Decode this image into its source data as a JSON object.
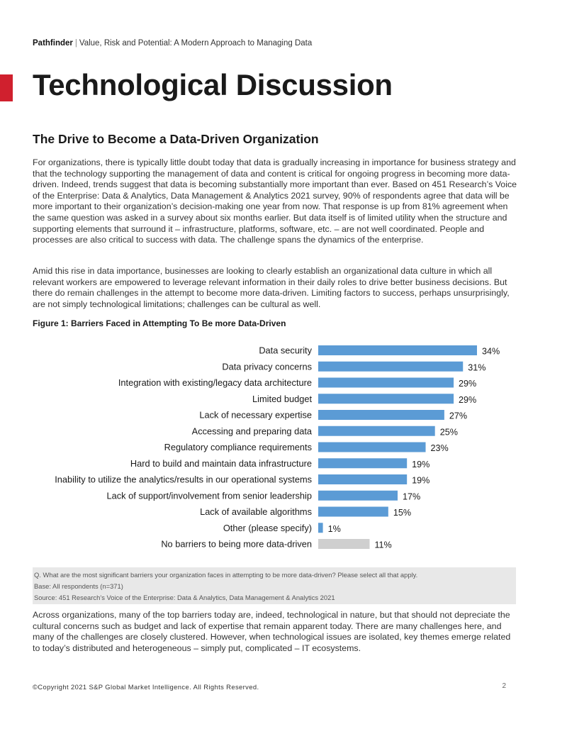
{
  "header": {
    "brand": "Pathfinder",
    "separator": "|",
    "subtitle": "Value, Risk and Potential: A Modern Approach to Managing Data"
  },
  "page_title": "Technological Discussion",
  "section_heading": "The Drive to Become a Data-Driven Organization",
  "paragraphs": {
    "p1": "For organizations, there is typically little doubt today that data is gradually increasing in importance for business strategy and that the technology supporting the management of data and content is critical for ongoing progress in becoming more data-driven. Indeed, trends suggest that data is becoming substantially more important than ever. Based on 451 Research’s Voice of the Enterprise: Data & Analytics, Data Management & Analytics 2021 survey, 90% of respondents agree that data will be more important to their organization’s decision-making one year from now. That response is up from 81% agreement when the same question was asked in a survey about six months earlier. But data itself is of limited utility when the structure and supporting elements that surround it – infrastructure, platforms, software, etc. – are not well coordinated. People and processes are also critical to success with data. The challenge spans the dynamics of the enterprise.",
    "p2": "Amid this rise in data importance, businesses are looking to clearly establish an organizational data culture in which all relevant workers are empowered to leverage relevant information in their daily roles to drive better business decisions. But there do remain challenges in the attempt to become more data-driven. Limiting factors to success, perhaps unsurprisingly, are not simply technological limitations; challenges can be cultural as well.",
    "p3": "Across organizations, many of the top barriers today are, indeed, technological in nature, but that should not depreciate the cultural concerns such as budget and lack of expertise that remain apparent today. There are many challenges here, and many of the challenges are closely clustered. However, when technological issues are isolated, key themes emerge related to today’s distributed and heterogeneous – simply put, complicated – IT ecosystems."
  },
  "figure_caption": "Figure 1: Barriers Faced in Attempting To Be more Data-Driven",
  "chart_data": {
    "type": "bar",
    "orientation": "horizontal",
    "title": "Figure 1: Barriers Faced in Attempting To Be more Data-Driven",
    "xlabel": "",
    "ylabel": "",
    "grid": false,
    "xlim": [
      0,
      34
    ],
    "categories": [
      "Data security",
      "Data privacy concerns",
      "Integration with existing/legacy data architecture",
      "Limited budget",
      "Lack of necessary expertise",
      "Accessing and preparing data",
      "Regulatory compliance requirements",
      "Hard to build and maintain data infrastructure",
      "Inability to utilize the analytics/results in our operational systems",
      "Lack of support/involvement from senior leadership",
      "Lack of available algorithms",
      "Other (please specify)",
      "No barriers to being more data-driven"
    ],
    "values": [
      34,
      31,
      29,
      29,
      27,
      25,
      23,
      19,
      19,
      17,
      15,
      1,
      11
    ],
    "value_labels": [
      "34%",
      "31%",
      "29%",
      "29%",
      "27%",
      "25%",
      "23%",
      "19%",
      "19%",
      "17%",
      "15%",
      "1%",
      "11%"
    ],
    "colors": {
      "bar": "#5b9bd5",
      "highlight_last": "#cfcfcf"
    }
  },
  "notes": {
    "question": "Q. What are the most significant barriers your organization faces in attempting to be more data-driven? Please select all that apply.",
    "base": "Base: All respondents (n=371)",
    "source": "Source: 451 Research’s Voice of the Enterprise: Data & Analytics, Data Management & Analytics 2021"
  },
  "footer": {
    "copyright": "©Copyright 2021 S&P Global Market Intelligence. All Rights Reserved.",
    "page_number": "2"
  },
  "colors": {
    "accent_red": "#d0202e",
    "note_background": "#e8e8e8"
  }
}
